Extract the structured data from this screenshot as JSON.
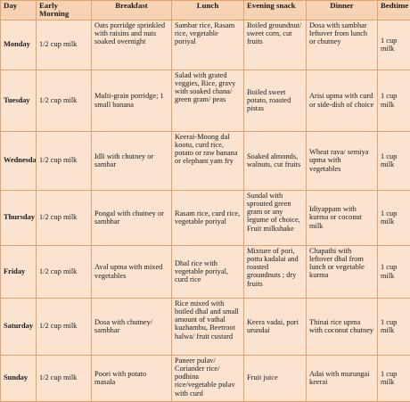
{
  "headers": [
    "Day",
    "Early Morning",
    "Breakfast",
    "Lunch",
    "Evening snack",
    "Dinner",
    "Bedtime"
  ],
  "rows": [
    {
      "day": "Monday",
      "early_morning": "1/2 cup milk",
      "breakfast": "Oats porridge sprinkled with raisins and nuts soaked overnight",
      "lunch": "Sambar rice, Rasam rice, vegetable poriyal",
      "evening_snack": "Boiled groundnut/ sweet corn, cut fruits",
      "dinner": "Dosa with sambhar leftover from lunch or chutney",
      "bedtime": "1 cup milk"
    },
    {
      "day": "Tuesday",
      "early_morning": "1/2 cup milk",
      "breakfast": "Multi-grain porridge; 1 small banana",
      "lunch": "Salad with grated veggies, Rice, gravy with soaked chana/ green gram/ peas",
      "evening_snack": "Boiled sweet potato, roasted pistas",
      "dinner": "Arisi upma with curd or side-dish of choice",
      "bedtime": "1 cup milk"
    },
    {
      "day": "Wednesday",
      "early_morning": "1/2 cup milk",
      "breakfast": "Idli with chutney or sambar",
      "lunch": "Keerai-Moong dal kootu, curd rice, potato or raw banana or elephant yam fry",
      "evening_snack": "Soaked almonds, walnuts, cut fruits",
      "dinner": "Wheat rava/ semiya upma with vegetables",
      "bedtime": "1 cup milk"
    },
    {
      "day": "Thursday",
      "early_morning": "1/2 cup milk",
      "breakfast": "Pongal with chutney or sambhar",
      "lunch": "Rasam rice, curd rice, vegetable poriyal",
      "evening_snack": "Sundal with sprouted green gram or any legume of choice, Fruit milkshake",
      "dinner": "Idiyappam with kurma or coconut milk",
      "bedtime": "1 cup milk"
    },
    {
      "day": "Friday",
      "early_morning": "1/2 cup milk",
      "breakfast": "Aval upma with mixed vegetables",
      "lunch": "Dhal rice with vegetable poriyal, curd rice",
      "evening_snack": "Mixture of pori, pottu kadalai and roasted groundnuts ; dry fruits",
      "dinner": "Chapathi with leftover dhal from lunch or vegetable kurma",
      "bedtime": "1 cup milk"
    },
    {
      "day": "Saturday",
      "early_morning": "1/2 cup milk",
      "breakfast": "Dosa with chutney/ sambhar",
      "lunch": "Rice mixed with boiled dhal and small amount of vathal kuzhambu, Beetroot halwa/ fruit custard",
      "evening_snack": "Keera vadai, pori urundai",
      "dinner": "Thinai rice upma with coconut chutney",
      "bedtime": "1 cup milk"
    },
    {
      "day": "Sunday",
      "early_morning": "1/2 cup milk",
      "breakfast": "Poori with potato masala",
      "lunch": "Paneer pulav/ Coriander rice/ podhina rice/vegetable pulav with curd",
      "evening_snack": "Fruit juice",
      "dinner": "Adai with murungai keerai",
      "bedtime": "1 cup milk"
    }
  ]
}
